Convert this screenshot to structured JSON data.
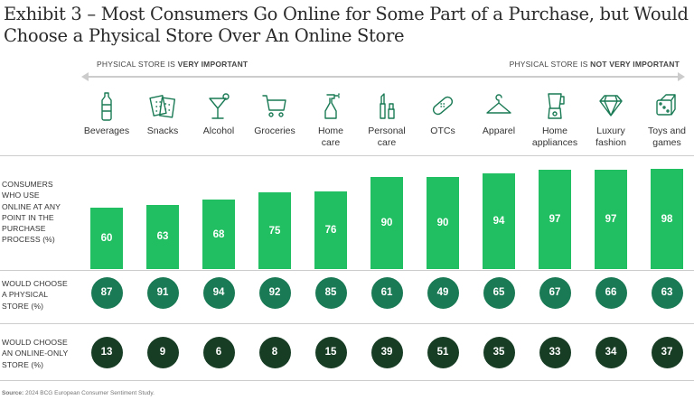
{
  "title_line1": "Exhibit 3 – Most Consumers Go Online for Some Part of a Purchase, but Would",
  "title_line2": "Choose a Physical Store Over An Online Store",
  "legend_left_prefix": "PHYSICAL STORE IS ",
  "legend_left_bold": "VERY IMPORTANT",
  "legend_right_prefix": "PHYSICAL STORE IS ",
  "legend_right_bold": "NOT VERY IMPORTANT",
  "row_labels": {
    "online": [
      "CONSUMERS",
      "WHO USE",
      "ONLINE AT ANY",
      "POINT IN THE",
      "PURCHASE",
      "PROCESS (%)"
    ],
    "physical": [
      "WOULD CHOOSE",
      "A PHYSICAL",
      "STORE (%)"
    ],
    "online_only": [
      "WOULD CHOOSE",
      "AN ONLINE-ONLY",
      "STORE (%)"
    ]
  },
  "source_label": "Source:",
  "source_text": " 2024 BCG European Consumer Sentiment Study.",
  "colors": {
    "bar": "#21bf61",
    "physical": "#1a7a55",
    "online_only": "#183d25",
    "icon": "#1a7a55"
  },
  "chart_data": {
    "type": "bar",
    "categories": [
      "Beverages",
      "Snacks",
      "Alcohol",
      "Groceries",
      "Home care",
      "Personal care",
      "OTCs",
      "Apparel",
      "Home appliances",
      "Luxury fashion",
      "Toys and games"
    ],
    "category_lines": [
      [
        "Beverages"
      ],
      [
        "Snacks"
      ],
      [
        "Alcohol"
      ],
      [
        "Groceries"
      ],
      [
        "Home",
        "care"
      ],
      [
        "Personal",
        "care"
      ],
      [
        "OTCs"
      ],
      [
        "Apparel"
      ],
      [
        "Home",
        "appliances"
      ],
      [
        "Luxury",
        "fashion"
      ],
      [
        "Toys and",
        "games"
      ]
    ],
    "icons": [
      "bottle-icon",
      "crackers-icon",
      "cocktail-icon",
      "cart-icon",
      "spray-bottle-icon",
      "cosmetics-icon",
      "bandage-icon",
      "hanger-icon",
      "blender-icon",
      "diamond-icon",
      "dice-icon"
    ],
    "series": [
      {
        "name": "Consumers who use online at any point in the purchase process (%)",
        "values": [
          60,
          63,
          68,
          75,
          76,
          90,
          90,
          94,
          97,
          97,
          98
        ]
      },
      {
        "name": "Would choose a physical store (%)",
        "values": [
          87,
          91,
          94,
          92,
          85,
          61,
          49,
          65,
          67,
          66,
          63
        ]
      },
      {
        "name": "Would choose an online-only store (%)",
        "values": [
          13,
          9,
          6,
          8,
          15,
          39,
          51,
          35,
          33,
          34,
          37
        ]
      }
    ],
    "ylim": [
      0,
      100
    ]
  }
}
